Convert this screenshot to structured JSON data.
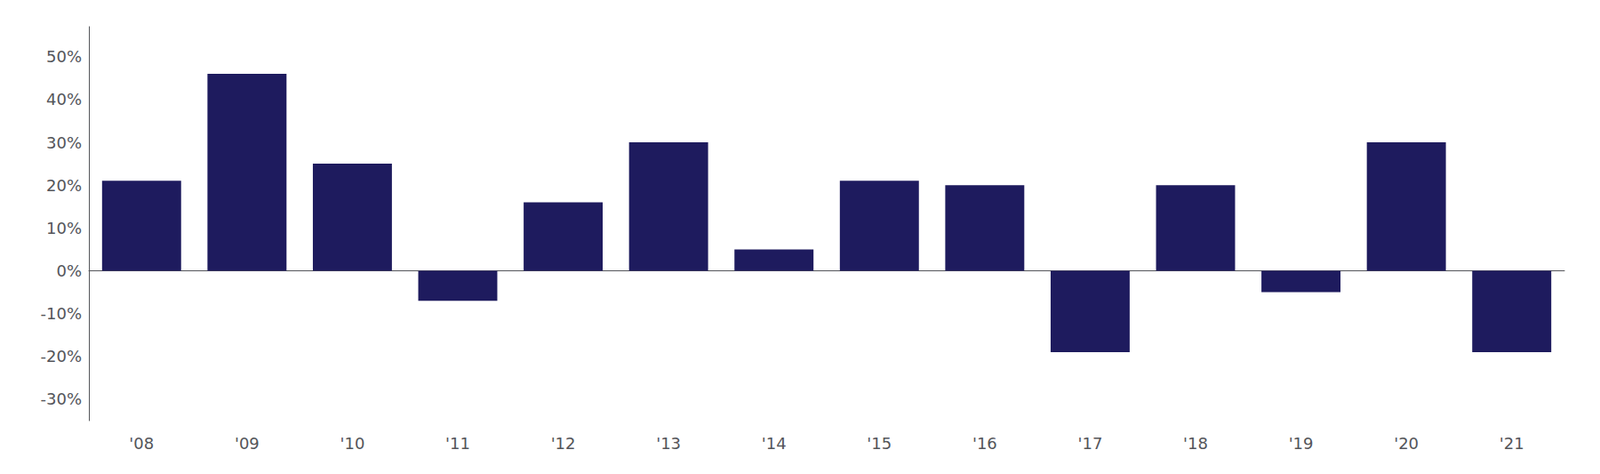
{
  "chart_data": {
    "type": "bar",
    "categories": [
      "'08",
      "'09",
      "'10",
      "'11",
      "'12",
      "'13",
      "'14",
      "'15",
      "'16",
      "'17",
      "'18",
      "'19",
      "'20",
      "'21"
    ],
    "values": [
      0.21,
      0.46,
      0.25,
      -0.07,
      0.16,
      0.3,
      0.05,
      0.21,
      0.2,
      -0.19,
      0.2,
      -0.05,
      0.3,
      -0.19
    ],
    "color": "#1e1b5e",
    "ylim": [
      -0.35,
      0.57
    ],
    "yticks": [
      {
        "value": -0.3,
        "label": "-30%"
      },
      {
        "value": -0.2,
        "label": "-20%"
      },
      {
        "value": -0.1,
        "label": "-10%"
      },
      {
        "value": 0.0,
        "label": "0%"
      },
      {
        "value": 0.1,
        "label": "10%"
      },
      {
        "value": 0.2,
        "label": "20%"
      },
      {
        "value": 0.3,
        "label": "30%"
      },
      {
        "value": 0.4,
        "label": "40%"
      },
      {
        "value": 0.5,
        "label": "50%"
      }
    ],
    "grid": false
  }
}
